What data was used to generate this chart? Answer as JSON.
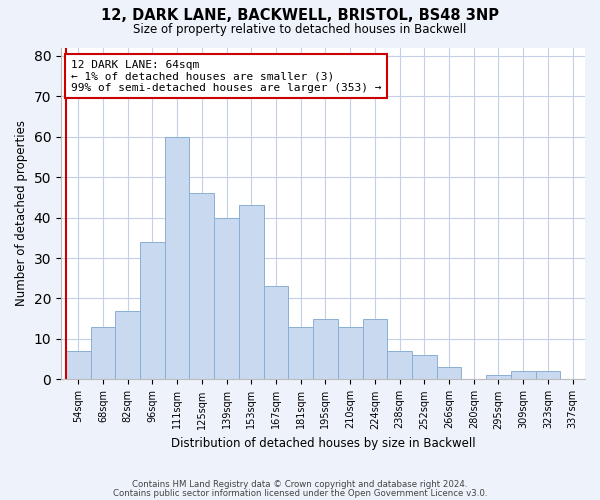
{
  "title": "12, DARK LANE, BACKWELL, BRISTOL, BS48 3NP",
  "subtitle": "Size of property relative to detached houses in Backwell",
  "xlabel": "Distribution of detached houses by size in Backwell",
  "ylabel": "Number of detached properties",
  "bin_labels": [
    "54sqm",
    "68sqm",
    "82sqm",
    "96sqm",
    "111sqm",
    "125sqm",
    "139sqm",
    "153sqm",
    "167sqm",
    "181sqm",
    "195sqm",
    "210sqm",
    "224sqm",
    "238sqm",
    "252sqm",
    "266sqm",
    "280sqm",
    "295sqm",
    "309sqm",
    "323sqm",
    "337sqm"
  ],
  "bar_heights": [
    7,
    13,
    17,
    34,
    60,
    46,
    40,
    43,
    23,
    13,
    15,
    13,
    15,
    7,
    6,
    3,
    0,
    1,
    2,
    2,
    0
  ],
  "bar_color": "#c9d9f0",
  "bar_edge_color": "#8bafd4",
  "highlight_color": "#cc0000",
  "annotation_line1": "12 DARK LANE: 64sqm",
  "annotation_line2": "← 1% of detached houses are smaller (3)",
  "annotation_line3": "99% of semi-detached houses are larger (353) →",
  "ylim": [
    0,
    82
  ],
  "yticks": [
    0,
    10,
    20,
    30,
    40,
    50,
    60,
    70,
    80
  ],
  "footer_line1": "Contains HM Land Registry data © Crown copyright and database right 2024.",
  "footer_line2": "Contains public sector information licensed under the Open Government Licence v3.0.",
  "bg_color": "#eef2fa",
  "plot_bg_color": "#ffffff",
  "grid_color": "#c5cfe8"
}
